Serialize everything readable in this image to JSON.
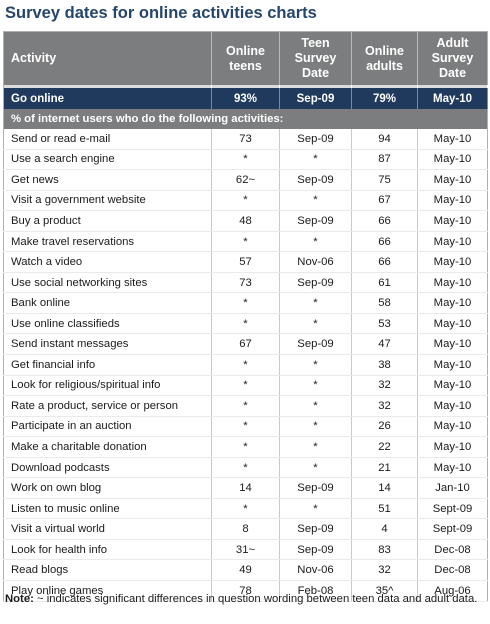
{
  "title": "Survey dates for online activities charts",
  "headers": {
    "activity": "Activity",
    "online_teens": "Online teens",
    "teen_survey_date": "Teen Survey Date",
    "online_adults": "Online adults",
    "adult_survey_date": "Adult Survey Date"
  },
  "go_online": {
    "activity": "Go online",
    "teens": "93%",
    "teen_date": "Sep-09",
    "adults": "79%",
    "adult_date": "May-10"
  },
  "section_label": "% of internet users who do the following activities:",
  "rows": [
    {
      "activity": "Send or read e-mail",
      "teens": "73",
      "teen_date": "Sep-09",
      "adults": "94",
      "adult_date": "May-10"
    },
    {
      "activity": "Use a search engine",
      "teens": "*",
      "teen_date": "*",
      "adults": "87",
      "adult_date": "May-10"
    },
    {
      "activity": "Get news",
      "teens": "62~",
      "teen_date": "Sep-09",
      "adults": "75",
      "adult_date": "May-10"
    },
    {
      "activity": "Visit a government website",
      "teens": "*",
      "teen_date": "*",
      "adults": "67",
      "adult_date": "May-10"
    },
    {
      "activity": "Buy a product",
      "teens": "48",
      "teen_date": "Sep-09",
      "adults": "66",
      "adult_date": "May-10"
    },
    {
      "activity": "Make travel reservations",
      "teens": "*",
      "teen_date": "*",
      "adults": "66",
      "adult_date": "May-10"
    },
    {
      "activity": "Watch a video",
      "teens": "57",
      "teen_date": "Nov-06",
      "adults": "66",
      "adult_date": "May-10"
    },
    {
      "activity": "Use social networking sites",
      "teens": "73",
      "teen_date": "Sep-09",
      "adults": "61",
      "adult_date": "May-10"
    },
    {
      "activity": "Bank online",
      "teens": "*",
      "teen_date": "*",
      "adults": "58",
      "adult_date": "May-10"
    },
    {
      "activity": "Use online classifieds",
      "teens": "*",
      "teen_date": "*",
      "adults": "53",
      "adult_date": "May-10"
    },
    {
      "activity": "Send instant messages",
      "teens": "67",
      "teen_date": "Sep-09",
      "adults": "47",
      "adult_date": "May-10"
    },
    {
      "activity": "Get financial info",
      "teens": "*",
      "teen_date": "*",
      "adults": "38",
      "adult_date": "May-10"
    },
    {
      "activity": "Look for religious/spiritual info",
      "teens": "*",
      "teen_date": "*",
      "adults": "32",
      "adult_date": "May-10"
    },
    {
      "activity": "Rate a product, service or person",
      "teens": "*",
      "teen_date": "*",
      "adults": "32",
      "adult_date": "May-10"
    },
    {
      "activity": "Participate in an auction",
      "teens": "*",
      "teen_date": "*",
      "adults": "26",
      "adult_date": "May-10"
    },
    {
      "activity": "Make a charitable donation",
      "teens": "*",
      "teen_date": "*",
      "adults": "22",
      "adult_date": "May-10"
    },
    {
      "activity": "Download podcasts",
      "teens": "*",
      "teen_date": "*",
      "adults": "21",
      "adult_date": "May-10"
    },
    {
      "activity": "Work on own blog",
      "teens": "14",
      "teen_date": "Sep-09",
      "adults": "14",
      "adult_date": "Jan-10"
    },
    {
      "activity": "Listen to music online",
      "teens": "*",
      "teen_date": "*",
      "adults": "51",
      "adult_date": "Sept-09"
    },
    {
      "activity": "Visit a virtual world",
      "teens": "8",
      "teen_date": "Sep-09",
      "adults": "4",
      "adult_date": "Sept-09"
    },
    {
      "activity": "Look for health info",
      "teens": "31~",
      "teen_date": "Sep-09",
      "adults": "83",
      "adult_date": "Dec-08"
    },
    {
      "activity": "Read blogs",
      "teens": "49",
      "teen_date": "Nov-06",
      "adults": "32",
      "adult_date": "Dec-08"
    },
    {
      "activity": "Play online games",
      "teens": "78",
      "teen_date": "Feb-08",
      "adults": "35^",
      "adult_date": "Aug-06"
    }
  ],
  "note": {
    "label": "Note:",
    "text": " ~ indicates significant differences in question wording between teen data and adult data."
  }
}
